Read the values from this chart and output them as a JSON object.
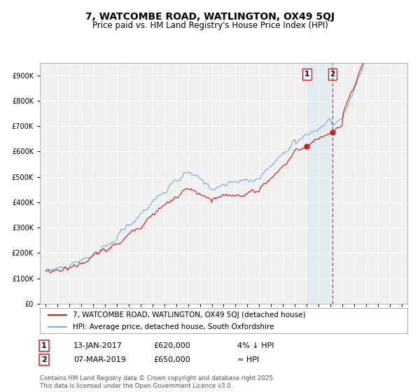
{
  "title": "7, WATCOMBE ROAD, WATLINGTON, OX49 5QJ",
  "subtitle": "Price paid vs. HM Land Registry's House Price Index (HPI)",
  "legend_line1": "7, WATCOMBE ROAD, WATLINGTON, OX49 5QJ (detached house)",
  "legend_line2": "HPI: Average price, detached house, South Oxfordshire",
  "annotation1_date": "13-JAN-2017",
  "annotation1_price": "£620,000",
  "annotation1_hpi": "4% ↓ HPI",
  "annotation2_date": "07-MAR-2019",
  "annotation2_price": "£650,000",
  "annotation2_hpi": "≈ HPI",
  "footer": "Contains HM Land Registry data © Crown copyright and database right 2025.\nThis data is licensed under the Open Government Licence v3.0.",
  "hpi_color": "#7bafd4",
  "price_color": "#cc2222",
  "dot_color": "#cc2222",
  "marker1_x_year": 2017.04,
  "marker2_x_year": 2019.18,
  "ylim_min": 0,
  "ylim_max": 950000,
  "xlim_min": 1994.5,
  "xlim_max": 2025.5,
  "plot_bg_color": "#f0f0f0",
  "grid_color": "#ffffff",
  "title_fontsize": 10,
  "subtitle_fontsize": 8.5,
  "tick_fontsize": 7,
  "legend_fontsize": 7.5,
  "annotation_fontsize": 8
}
